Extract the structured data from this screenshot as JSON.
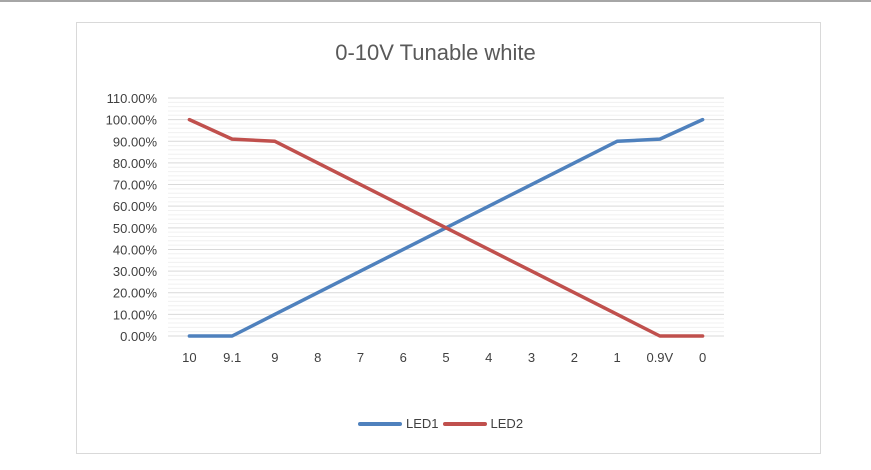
{
  "chart_data": {
    "type": "line",
    "title": "0-10V Tunable white",
    "xlabel": "",
    "ylabel": "",
    "categories": [
      "10",
      "9.1",
      "9",
      "8",
      "7",
      "6",
      "5",
      "4",
      "3",
      "2",
      "1",
      "0.9V",
      "0"
    ],
    "series": [
      {
        "name": "LED1",
        "color": "#4f81bd",
        "values": [
          0,
          0,
          10,
          20,
          30,
          40,
          50,
          60,
          70,
          80,
          90,
          91,
          100
        ]
      },
      {
        "name": "LED2",
        "color": "#c0504d",
        "values": [
          100,
          91,
          90,
          80,
          70,
          60,
          50,
          40,
          30,
          20,
          10,
          0,
          0
        ]
      }
    ],
    "yticks": [
      "0.00%",
      "10.00%",
      "20.00%",
      "30.00%",
      "40.00%",
      "50.00%",
      "60.00%",
      "70.00%",
      "80.00%",
      "90.00%",
      "100.00%",
      "110.00%"
    ],
    "ylim": [
      0,
      110
    ],
    "grid": true,
    "legend_position": "bottom"
  }
}
